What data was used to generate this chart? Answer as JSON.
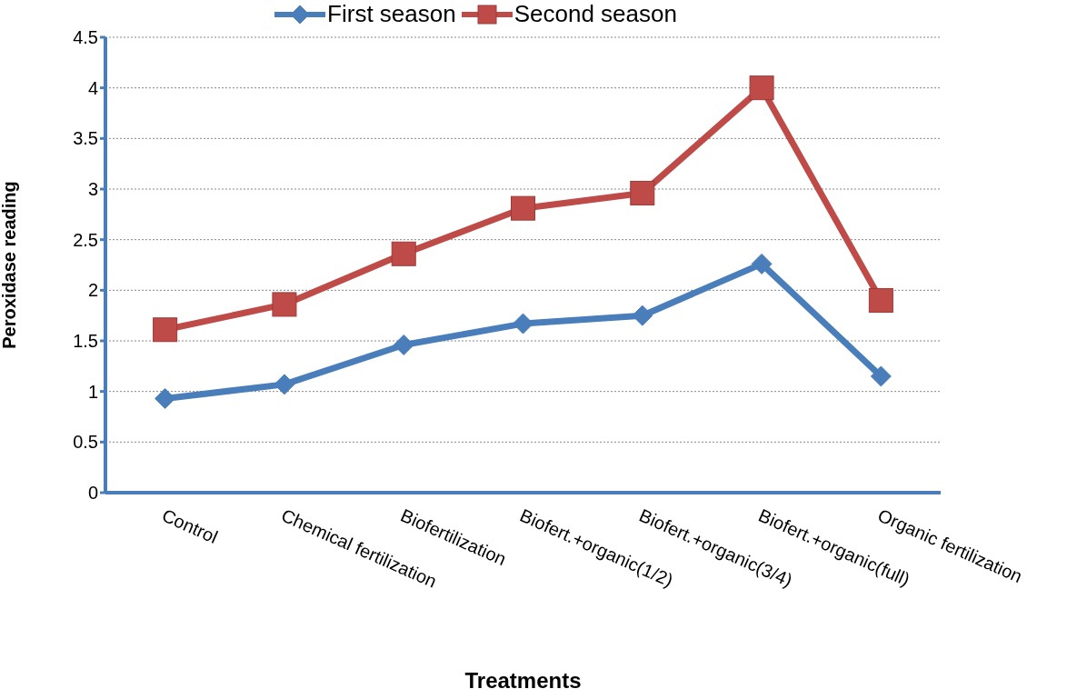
{
  "chart_data": {
    "type": "line",
    "xlabel": "Treatments",
    "ylabel": "Peroxidase reading",
    "categories": [
      "Control",
      "Chemical fertilization",
      "Biofertilization",
      "Biofert.+organic(1/2)",
      "Biofert.+organic(3/4)",
      "Biofert.+organic(full)",
      "Organic fertilization"
    ],
    "series": [
      {
        "name": "First season",
        "color": "#4a7ebb",
        "marker": "diamond",
        "values": [
          0.93,
          1.07,
          1.46,
          1.67,
          1.75,
          2.26,
          1.15
        ]
      },
      {
        "name": "Second season",
        "color": "#be4b48",
        "marker": "square",
        "values": [
          1.61,
          1.86,
          2.36,
          2.81,
          2.96,
          4.0,
          1.9
        ]
      }
    ],
    "ylim": [
      0,
      4.5
    ],
    "yticks": [
      0,
      0.5,
      1,
      1.5,
      2,
      2.5,
      3,
      3.5,
      4,
      4.5
    ],
    "grid": "y",
    "legend": "top"
  }
}
